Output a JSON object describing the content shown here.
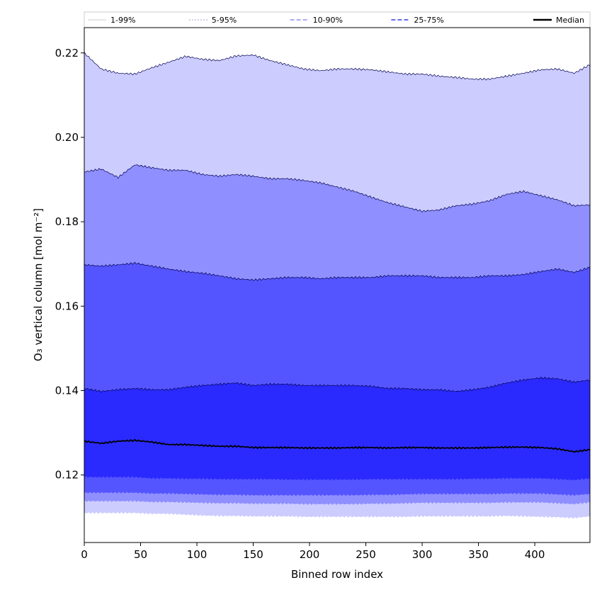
{
  "chart_data": {
    "type": "area",
    "title": "",
    "xlabel": "Binned row index",
    "ylabel": "O₃ vertical column [mol m⁻²]",
    "xlim": [
      0,
      449
    ],
    "ylim": [
      0.104,
      0.226
    ],
    "xticks": [
      0,
      50,
      100,
      150,
      200,
      250,
      300,
      350,
      400
    ],
    "yticks": [
      0.12,
      0.14,
      0.16,
      0.18,
      0.2,
      0.22
    ],
    "ytick_labels": [
      "0.12",
      "0.14",
      "0.16",
      "0.18",
      "0.20",
      "0.22"
    ],
    "grid": false,
    "legend_position": "top",
    "x": [
      0,
      15,
      30,
      45,
      60,
      75,
      90,
      105,
      120,
      135,
      150,
      165,
      180,
      195,
      210,
      225,
      240,
      255,
      270,
      285,
      300,
      315,
      330,
      345,
      360,
      375,
      390,
      405,
      420,
      435,
      449
    ],
    "bands": [
      {
        "name": "1-99%",
        "color": "#ccccff",
        "lower": [
          0.111,
          0.111,
          0.111,
          0.111,
          0.1108,
          0.1108,
          0.1106,
          0.1104,
          0.1103,
          0.1103,
          0.1102,
          0.1102,
          0.1102,
          0.1101,
          0.1101,
          0.1101,
          0.1101,
          0.1101,
          0.1101,
          0.1101,
          0.1102,
          0.1102,
          0.1102,
          0.1102,
          0.1102,
          0.1103,
          0.1102,
          0.1101,
          0.11,
          0.1098,
          0.1102
        ],
        "upper": [
          0.22,
          0.2162,
          0.2152,
          0.215,
          0.2165,
          0.2178,
          0.2192,
          0.2185,
          0.2182,
          0.2193,
          0.2195,
          0.2182,
          0.2172,
          0.2162,
          0.2158,
          0.2162,
          0.2162,
          0.216,
          0.2155,
          0.215,
          0.215,
          0.2145,
          0.2142,
          0.2138,
          0.2138,
          0.2145,
          0.2152,
          0.216,
          0.2162,
          0.2152,
          0.2172
        ]
      },
      {
        "name": "5-95%",
        "color": "#8f8fff",
        "lower": [
          0.1138,
          0.1138,
          0.1138,
          0.1138,
          0.1136,
          0.1136,
          0.1135,
          0.1134,
          0.1133,
          0.1133,
          0.1132,
          0.1132,
          0.1132,
          0.1131,
          0.1131,
          0.1131,
          0.1131,
          0.1132,
          0.1132,
          0.1133,
          0.1134,
          0.1134,
          0.1134,
          0.1134,
          0.1134,
          0.1135,
          0.1135,
          0.1135,
          0.1133,
          0.1131,
          0.1135
        ],
        "upper": [
          0.1918,
          0.1925,
          0.1905,
          0.1935,
          0.1928,
          0.1922,
          0.1922,
          0.1912,
          0.1908,
          0.1912,
          0.1908,
          0.1902,
          0.1902,
          0.1898,
          0.1892,
          0.1882,
          0.1872,
          0.1858,
          0.1845,
          0.1835,
          0.1825,
          0.1828,
          0.1838,
          0.1842,
          0.185,
          0.1865,
          0.1872,
          0.1862,
          0.1852,
          0.1838,
          0.184
        ]
      },
      {
        "name": "10-90%",
        "color": "#5555ff",
        "lower": [
          0.1158,
          0.1158,
          0.1158,
          0.1158,
          0.1156,
          0.1156,
          0.1155,
          0.1154,
          0.1153,
          0.1153,
          0.1152,
          0.1152,
          0.1152,
          0.1152,
          0.1152,
          0.1152,
          0.1152,
          0.1153,
          0.1153,
          0.1154,
          0.1155,
          0.1155,
          0.1155,
          0.1155,
          0.1155,
          0.1156,
          0.1156,
          0.1156,
          0.1154,
          0.1152,
          0.1155
        ],
        "upper": [
          0.1698,
          0.1695,
          0.1698,
          0.1702,
          0.1695,
          0.1688,
          0.1682,
          0.1678,
          0.1672,
          0.1665,
          0.1662,
          0.1665,
          0.1668,
          0.1668,
          0.1665,
          0.1668,
          0.1668,
          0.1668,
          0.1672,
          0.1672,
          0.1672,
          0.1668,
          0.1668,
          0.1668,
          0.1672,
          0.1672,
          0.1675,
          0.1682,
          0.1688,
          0.168,
          0.1692
        ]
      },
      {
        "name": "25-75%",
        "color": "#2a2aff",
        "lower": [
          0.1195,
          0.1195,
          0.1195,
          0.1195,
          0.1192,
          0.1192,
          0.1191,
          0.1191,
          0.119,
          0.119,
          0.119,
          0.119,
          0.1189,
          0.1189,
          0.1189,
          0.1189,
          0.1189,
          0.119,
          0.119,
          0.119,
          0.119,
          0.119,
          0.119,
          0.1191,
          0.1191,
          0.1192,
          0.1192,
          0.1192,
          0.119,
          0.1188,
          0.1192
        ],
        "upper": [
          0.1405,
          0.1398,
          0.1402,
          0.1405,
          0.1402,
          0.1402,
          0.1408,
          0.1412,
          0.1415,
          0.1418,
          0.1412,
          0.1415,
          0.1415,
          0.1412,
          0.1412,
          0.1412,
          0.1412,
          0.141,
          0.1405,
          0.1405,
          0.1402,
          0.1402,
          0.1398,
          0.1402,
          0.1408,
          0.1418,
          0.1425,
          0.143,
          0.1428,
          0.142,
          0.1425
        ]
      }
    ],
    "median": {
      "name": "Median",
      "color": "#000000",
      "values": [
        0.128,
        0.1275,
        0.128,
        0.1282,
        0.1278,
        0.1272,
        0.1272,
        0.127,
        0.1268,
        0.1268,
        0.1265,
        0.1265,
        0.1265,
        0.1264,
        0.1264,
        0.1264,
        0.1265,
        0.1265,
        0.1264,
        0.1265,
        0.1265,
        0.1264,
        0.1264,
        0.1264,
        0.1265,
        0.1266,
        0.1266,
        0.1265,
        0.1262,
        0.1255,
        0.126
      ]
    },
    "legend": [
      {
        "label": "1-99%",
        "color": "#cccccf",
        "dash": "none",
        "width": 1
      },
      {
        "label": "5-95%",
        "color": "#9b9bd0",
        "dash": "2,2",
        "width": 1
      },
      {
        "label": "10-90%",
        "color": "#8f8fff",
        "dash": "6,3",
        "width": 1.5
      },
      {
        "label": "25-75%",
        "color": "#5555ee",
        "dash": "6,3",
        "width": 1.8
      },
      {
        "label": "Median",
        "color": "#000000",
        "dash": "none",
        "width": 2.5
      }
    ]
  }
}
